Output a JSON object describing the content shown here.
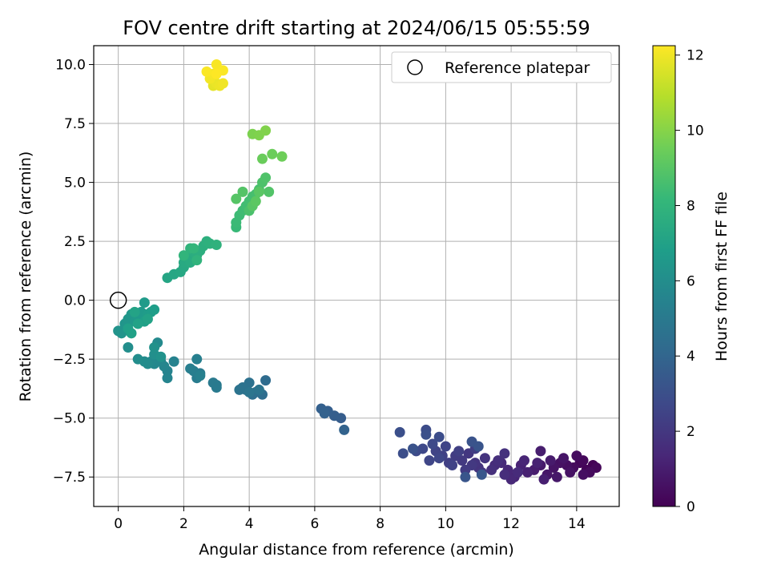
{
  "chart_data": {
    "type": "scatter",
    "title": "FOV centre drift starting at 2024/06/15 05:55:59",
    "xlabel": "Angular distance from reference (arcmin)",
    "ylabel": "Rotation from reference (arcmin)",
    "xlim": [
      -0.75,
      15.3
    ],
    "ylim": [
      -8.75,
      10.8
    ],
    "x_ticks": [
      0,
      2,
      4,
      6,
      8,
      10,
      12,
      14
    ],
    "y_ticks": [
      -7.5,
      -5.0,
      -2.5,
      0.0,
      2.5,
      5.0,
      7.5,
      10.0
    ],
    "x_tick_labels": [
      "0",
      "2",
      "4",
      "6",
      "8",
      "10",
      "12",
      "14"
    ],
    "y_tick_labels": [
      "−7.5",
      "−5.0",
      "−2.5",
      "0.0",
      "2.5",
      "5.0",
      "7.5",
      "10.0"
    ],
    "grid": true,
    "legend": {
      "position": "top-right",
      "entries": [
        "Reference platepar"
      ]
    },
    "reference_point": {
      "x": 0,
      "y": 0,
      "marker": "open-circle"
    },
    "colorbar": {
      "label": "Hours from first FF file",
      "range": [
        0,
        12.25
      ],
      "ticks": [
        0,
        2,
        4,
        6,
        8,
        10,
        12
      ],
      "tick_labels": [
        "0",
        "2",
        "4",
        "6",
        "8",
        "10",
        "12"
      ],
      "colormap": "viridis",
      "colors": [
        "#440154",
        "#482878",
        "#3e4989",
        "#31688e",
        "#26828e",
        "#1f9e89",
        "#35b779",
        "#6ece58",
        "#b5de2b",
        "#fde725"
      ]
    },
    "series": [
      {
        "points": [
          [
            14.5,
            -7.0,
            0.05
          ],
          [
            14.3,
            -7.2,
            0.1
          ],
          [
            14.1,
            -6.9,
            0.15
          ],
          [
            14.6,
            -7.1,
            0.2
          ],
          [
            14.2,
            -6.8,
            0.25
          ],
          [
            13.9,
            -7.1,
            0.3
          ],
          [
            14.4,
            -7.3,
            0.35
          ],
          [
            14.0,
            -6.6,
            0.4
          ],
          [
            13.7,
            -7.0,
            0.45
          ],
          [
            14.2,
            -7.4,
            0.5
          ],
          [
            13.5,
            -6.9,
            0.55
          ],
          [
            13.8,
            -7.3,
            0.6
          ],
          [
            13.3,
            -7.1,
            0.65
          ],
          [
            13.6,
            -6.7,
            0.7
          ],
          [
            13.1,
            -7.4,
            0.75
          ],
          [
            13.4,
            -7.5,
            0.8
          ],
          [
            12.9,
            -7.0,
            0.85
          ],
          [
            13.2,
            -6.8,
            0.9
          ],
          [
            12.7,
            -7.2,
            0.95
          ],
          [
            12.9,
            -6.4,
            1.0
          ],
          [
            13.0,
            -7.6,
            1.05
          ],
          [
            12.5,
            -7.3,
            1.1
          ],
          [
            12.8,
            -6.9,
            1.15
          ],
          [
            12.3,
            -7.0,
            1.2
          ],
          [
            12.1,
            -7.5,
            1.25
          ],
          [
            12.4,
            -6.8,
            1.3
          ],
          [
            11.9,
            -7.2,
            1.35
          ],
          [
            12.0,
            -7.6,
            1.4
          ],
          [
            11.7,
            -6.9,
            1.45
          ],
          [
            12.2,
            -7.3,
            1.5
          ],
          [
            11.5,
            -7.0,
            1.55
          ],
          [
            11.8,
            -7.4,
            1.6
          ],
          [
            11.6,
            -6.8,
            1.65
          ],
          [
            11.4,
            -7.2,
            1.7
          ],
          [
            11.8,
            -6.5,
            1.75
          ],
          [
            11.0,
            -7.1,
            1.8
          ],
          [
            11.2,
            -6.7,
            1.85
          ],
          [
            10.9,
            -6.9,
            1.9
          ],
          [
            11.1,
            -7.3,
            1.95
          ],
          [
            10.7,
            -6.5,
            2.0
          ],
          [
            10.8,
            -7.0,
            2.05
          ],
          [
            10.5,
            -6.8,
            2.1
          ],
          [
            10.6,
            -7.2,
            2.15
          ],
          [
            10.3,
            -6.6,
            2.2
          ],
          [
            10.9,
            -6.3,
            2.25
          ],
          [
            10.1,
            -6.9,
            2.3
          ],
          [
            10.4,
            -6.4,
            2.35
          ],
          [
            9.9,
            -6.6,
            2.4
          ],
          [
            10.2,
            -7.0,
            2.45
          ],
          [
            9.7,
            -6.4,
            2.5
          ],
          [
            10.0,
            -6.2,
            2.55
          ],
          [
            9.5,
            -6.8,
            2.6
          ],
          [
            9.8,
            -6.7,
            2.65
          ],
          [
            9.3,
            -6.3,
            2.7
          ],
          [
            9.6,
            -6.1,
            2.75
          ],
          [
            9.1,
            -6.4,
            2.8
          ],
          [
            9.4,
            -5.5,
            2.85
          ],
          [
            9.8,
            -5.8,
            2.9
          ],
          [
            8.7,
            -6.5,
            2.95
          ],
          [
            8.6,
            -5.6,
            3.0
          ],
          [
            9.4,
            -5.7,
            3.05
          ],
          [
            9.0,
            -6.3,
            3.1
          ],
          [
            10.8,
            -6.0,
            3.15
          ],
          [
            11.0,
            -6.2,
            3.2
          ],
          [
            10.6,
            -7.5,
            3.25
          ],
          [
            11.1,
            -7.4,
            3.3
          ],
          [
            6.8,
            -5.0,
            3.6
          ],
          [
            6.6,
            -4.9,
            3.65
          ],
          [
            6.4,
            -4.7,
            3.7
          ],
          [
            6.2,
            -4.6,
            3.75
          ],
          [
            6.3,
            -4.8,
            3.8
          ],
          [
            6.9,
            -5.5,
            3.85
          ],
          [
            4.5,
            -3.4,
            4.3
          ],
          [
            4.4,
            -4.0,
            4.35
          ],
          [
            4.2,
            -3.9,
            4.4
          ],
          [
            4.1,
            -4.0,
            4.45
          ],
          [
            3.9,
            -3.8,
            4.5
          ],
          [
            4.0,
            -3.5,
            4.55
          ],
          [
            3.8,
            -3.7,
            4.6
          ],
          [
            3.7,
            -3.8,
            4.65
          ],
          [
            4.3,
            -3.8,
            4.7
          ],
          [
            4.0,
            -3.9,
            4.75
          ],
          [
            3.0,
            -3.6,
            4.95
          ],
          [
            2.9,
            -3.5,
            5.0
          ],
          [
            3.0,
            -3.7,
            5.05
          ],
          [
            2.5,
            -3.1,
            5.1
          ],
          [
            2.4,
            -3.3,
            5.15
          ],
          [
            2.3,
            -3.0,
            5.2
          ],
          [
            2.2,
            -2.9,
            5.25
          ],
          [
            2.4,
            -2.5,
            5.3
          ],
          [
            2.5,
            -3.2,
            5.35
          ],
          [
            1.7,
            -2.6,
            5.45
          ],
          [
            1.5,
            -3.0,
            5.5
          ],
          [
            1.5,
            -3.3,
            5.55
          ],
          [
            1.4,
            -2.8,
            5.6
          ],
          [
            1.3,
            -2.6,
            5.65
          ],
          [
            1.2,
            -2.5,
            5.7
          ],
          [
            1.1,
            -2.7,
            5.75
          ],
          [
            1.0,
            -2.6,
            5.8
          ],
          [
            1.2,
            -1.8,
            5.85
          ],
          [
            0.9,
            -2.7,
            5.9
          ],
          [
            0.8,
            -2.6,
            5.95
          ],
          [
            0.6,
            -2.5,
            6.0
          ],
          [
            0.3,
            -2.0,
            6.05
          ],
          [
            1.1,
            -2.3,
            6.1
          ],
          [
            1.1,
            -2.0,
            6.15
          ],
          [
            1.3,
            -2.4,
            6.2
          ],
          [
            0.0,
            -1.3,
            6.25
          ],
          [
            0.1,
            -1.4,
            6.3
          ],
          [
            0.2,
            -1.0,
            6.35
          ],
          [
            0.3,
            -0.8,
            6.4
          ],
          [
            0.4,
            -0.6,
            6.45
          ],
          [
            0.5,
            -0.9,
            6.5
          ],
          [
            0.6,
            -0.7,
            6.55
          ],
          [
            0.7,
            -0.5,
            6.6
          ],
          [
            0.8,
            -0.1,
            6.65
          ],
          [
            0.9,
            -0.6,
            6.7
          ],
          [
            1.0,
            -0.5,
            6.75
          ],
          [
            1.1,
            -0.4,
            6.8
          ],
          [
            0.8,
            -0.9,
            6.85
          ],
          [
            0.3,
            -1.2,
            6.9
          ],
          [
            0.4,
            -1.4,
            6.95
          ],
          [
            0.6,
            -1.0,
            7.0
          ],
          [
            0.9,
            -0.8,
            7.05
          ],
          [
            0.5,
            -0.5,
            7.1
          ],
          [
            1.5,
            0.95,
            7.2
          ],
          [
            1.7,
            1.1,
            7.25
          ],
          [
            1.9,
            1.2,
            7.3
          ],
          [
            2.0,
            1.4,
            7.35
          ],
          [
            2.0,
            1.6,
            7.4
          ],
          [
            2.1,
            1.8,
            7.45
          ],
          [
            2.2,
            1.6,
            7.5
          ],
          [
            2.3,
            2.0,
            7.55
          ],
          [
            2.4,
            1.9,
            7.6
          ],
          [
            2.5,
            2.1,
            7.65
          ],
          [
            2.6,
            2.3,
            7.7
          ],
          [
            2.7,
            2.5,
            7.75
          ],
          [
            2.8,
            2.4,
            7.8
          ],
          [
            3.0,
            2.35,
            7.85
          ],
          [
            2.2,
            2.2,
            7.9
          ],
          [
            2.4,
            1.7,
            7.95
          ],
          [
            2.0,
            1.9,
            8.0
          ],
          [
            2.3,
            2.2,
            8.05
          ],
          [
            3.6,
            3.1,
            8.25
          ],
          [
            3.6,
            3.3,
            8.3
          ],
          [
            3.7,
            3.6,
            8.35
          ],
          [
            3.8,
            3.8,
            8.4
          ],
          [
            3.9,
            4.0,
            8.45
          ],
          [
            4.0,
            4.2,
            8.5
          ],
          [
            4.1,
            4.4,
            8.55
          ],
          [
            4.2,
            4.5,
            8.6
          ],
          [
            4.3,
            4.7,
            8.65
          ],
          [
            4.0,
            3.8,
            8.7
          ],
          [
            4.4,
            5.0,
            8.75
          ],
          [
            4.5,
            5.2,
            8.8
          ],
          [
            4.6,
            4.6,
            8.85
          ],
          [
            3.8,
            4.6,
            8.9
          ],
          [
            3.6,
            4.3,
            8.95
          ],
          [
            4.1,
            4.0,
            9.0
          ],
          [
            4.3,
            4.6,
            9.05
          ],
          [
            4.2,
            4.2,
            9.1
          ],
          [
            4.4,
            6.0,
            9.4
          ],
          [
            4.7,
            6.2,
            9.45
          ],
          [
            5.0,
            6.1,
            9.5
          ],
          [
            4.1,
            7.05,
            9.8
          ],
          [
            4.3,
            7.0,
            9.85
          ],
          [
            4.5,
            7.2,
            9.9
          ],
          [
            2.9,
            9.1,
            11.8
          ],
          [
            3.0,
            9.2,
            11.9
          ],
          [
            3.1,
            9.1,
            11.95
          ],
          [
            3.2,
            9.2,
            12.0
          ],
          [
            2.8,
            9.4,
            12.05
          ],
          [
            2.9,
            9.6,
            12.1
          ],
          [
            3.0,
            10.0,
            12.15
          ],
          [
            3.2,
            9.75,
            12.2
          ],
          [
            2.7,
            9.7,
            12.2
          ],
          [
            3.0,
            9.6,
            12.25
          ]
        ]
      }
    ]
  }
}
